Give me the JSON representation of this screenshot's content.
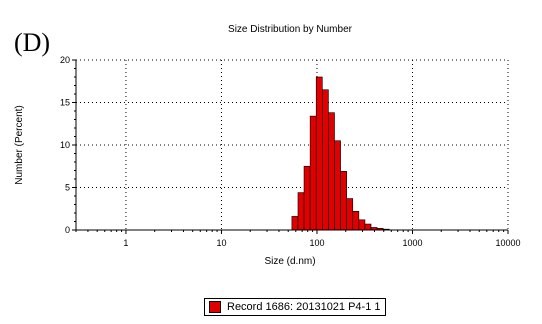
{
  "panel_label": "(D)",
  "colors": {
    "bar_fill": "#e00000",
    "bar_stroke": "#000000",
    "grid": "#000000",
    "axis": "#000000"
  },
  "chart_data": {
    "type": "bar",
    "title": "Size Distribution by Number",
    "xlabel": "Size (d.nm)",
    "ylabel": "Number (Percent)",
    "x_scale": "log",
    "xlim": [
      0.3,
      10000
    ],
    "ylim": [
      0,
      20
    ],
    "x_ticks": [
      1,
      10,
      100,
      1000,
      10000
    ],
    "x_tick_labels": [
      "1",
      "10",
      "100",
      "1000",
      "10000"
    ],
    "y_ticks": [
      0,
      5,
      10,
      15,
      20
    ],
    "y_tick_labels": [
      "0",
      "5",
      "10",
      "15",
      "20"
    ],
    "grid": true,
    "legend_position": "bottom-center",
    "series": [
      {
        "name": "Record 1686: 20131021 P4-1 1",
        "x": [
          58.8,
          68.1,
          78.8,
          91.3,
          105.7,
          122.4,
          141.8,
          164.2,
          190.1,
          220.2,
          255.0,
          295.3,
          342.0,
          396.1,
          458.7,
          531.2
        ],
        "values": [
          1.6,
          4.4,
          7.5,
          13.4,
          18.0,
          16.5,
          13.8,
          10.5,
          6.9,
          3.7,
          2.2,
          1.2,
          0.7,
          0.3,
          0.2,
          0.1
        ]
      }
    ]
  }
}
